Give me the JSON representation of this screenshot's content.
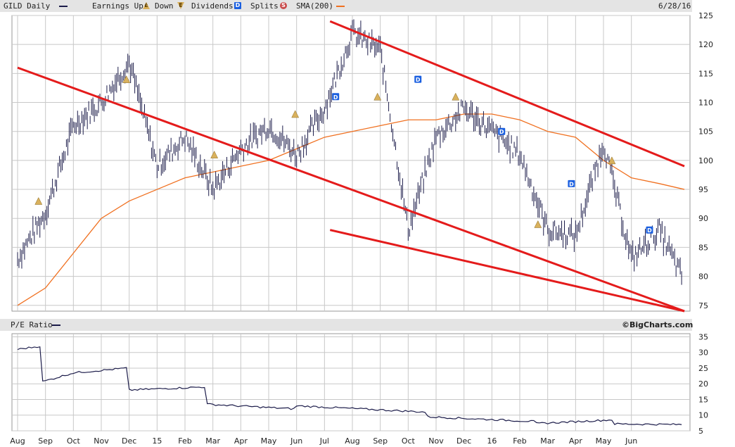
{
  "header": {
    "symbol_label": "GILD Daily",
    "earnings_up_label": "Earnings Up",
    "down_label": "Down",
    "dividends_label": "Dividends",
    "splits_label": "Splits",
    "sma_label": "SMA(200)",
    "date_label": "6/28/16"
  },
  "pe_panel": {
    "title": "P/E Ratio",
    "brand": "©BigCharts.com"
  },
  "icons": {
    "earnings_up": "triangle-up-icon",
    "earnings_down": "triangle-down-icon",
    "dividend": "dividend-d-icon",
    "split": "split-s-icon"
  },
  "colors": {
    "price": "#1c1c4a",
    "sma": "#f07020",
    "trendline": "#e41b1b",
    "earnings": "#d9b15d",
    "dividend": "#1a5fe0",
    "split": "#c94a4a",
    "grid": "#c8c8c8"
  },
  "chart_data": [
    {
      "type": "line",
      "name": "price",
      "x_ticks": [
        "Aug",
        "Sep",
        "Oct",
        "Nov",
        "Dec",
        "15",
        "Feb",
        "Mar",
        "Apr",
        "May",
        "Jun",
        "Jul",
        "Aug",
        "Sep",
        "Oct",
        "Nov",
        "Dec",
        "16",
        "Feb",
        "Mar",
        "Apr",
        "May",
        "Jun"
      ],
      "y_ticks": [
        75,
        80,
        85,
        90,
        95,
        100,
        105,
        110,
        115,
        120,
        125
      ],
      "ylim": [
        74,
        125
      ],
      "grid": true,
      "x_months": [
        0,
        1,
        2,
        3,
        4,
        5,
        6,
        7,
        8,
        9,
        10,
        11,
        12,
        13,
        14,
        15,
        16,
        17,
        18,
        19,
        20,
        21,
        22,
        23,
        23.9
      ],
      "series": [
        {
          "name": "GILD",
          "values": [
            83,
            91,
            106,
            110,
            117,
            99,
            104,
            95,
            102,
            106,
            101,
            109,
            122,
            119,
            88,
            104,
            109,
            105,
            101,
            88,
            87,
            103,
            83,
            88,
            79
          ]
        },
        {
          "name": "SMA(200)",
          "values": [
            75,
            78,
            84,
            90,
            93,
            95,
            97,
            98,
            99,
            100,
            102,
            104,
            105,
            106,
            107,
            107,
            108,
            108,
            107,
            105,
            104,
            100,
            97,
            96,
            95
          ]
        }
      ],
      "trendlines": [
        {
          "points": [
            [
              0,
              116
            ],
            [
              23.9,
              74
            ]
          ]
        },
        {
          "points": [
            [
              11.2,
              124
            ],
            [
              23.9,
              99
            ]
          ]
        },
        {
          "points": [
            [
              11.2,
              88
            ],
            [
              23.9,
              74
            ]
          ]
        }
      ],
      "earnings": [
        {
          "x": 0.75,
          "y": 93
        },
        {
          "x": 3.9,
          "y": 114
        },
        {
          "x": 7.05,
          "y": 101
        },
        {
          "x": 9.95,
          "y": 108
        },
        {
          "x": 12.9,
          "y": 111
        },
        {
          "x": 15.7,
          "y": 111
        },
        {
          "x": 18.65,
          "y": 89
        },
        {
          "x": 21.3,
          "y": 100
        }
      ],
      "dividends": [
        {
          "x": 11.4,
          "y": 111
        },
        {
          "x": 14.35,
          "y": 114
        },
        {
          "x": 17.35,
          "y": 105
        },
        {
          "x": 19.85,
          "y": 96
        },
        {
          "x": 22.65,
          "y": 88
        }
      ]
    },
    {
      "type": "line",
      "name": "P/E Ratio",
      "y_ticks": [
        5,
        10,
        15,
        20,
        25,
        30,
        35
      ],
      "ylim": [
        5,
        36
      ],
      "grid": true,
      "x_months": [
        0,
        0.8,
        0.82,
        2,
        3.9,
        3.95,
        6.7,
        6.75,
        9.9,
        9.95,
        14.6,
        14.65,
        18.5,
        18.55,
        21.3,
        21.35,
        23.9
      ],
      "values": [
        31,
        32,
        20.5,
        23.5,
        25,
        18,
        19,
        13.5,
        12,
        13,
        11,
        9.5,
        8,
        7.3,
        8.5,
        7.2,
        7
      ]
    }
  ]
}
